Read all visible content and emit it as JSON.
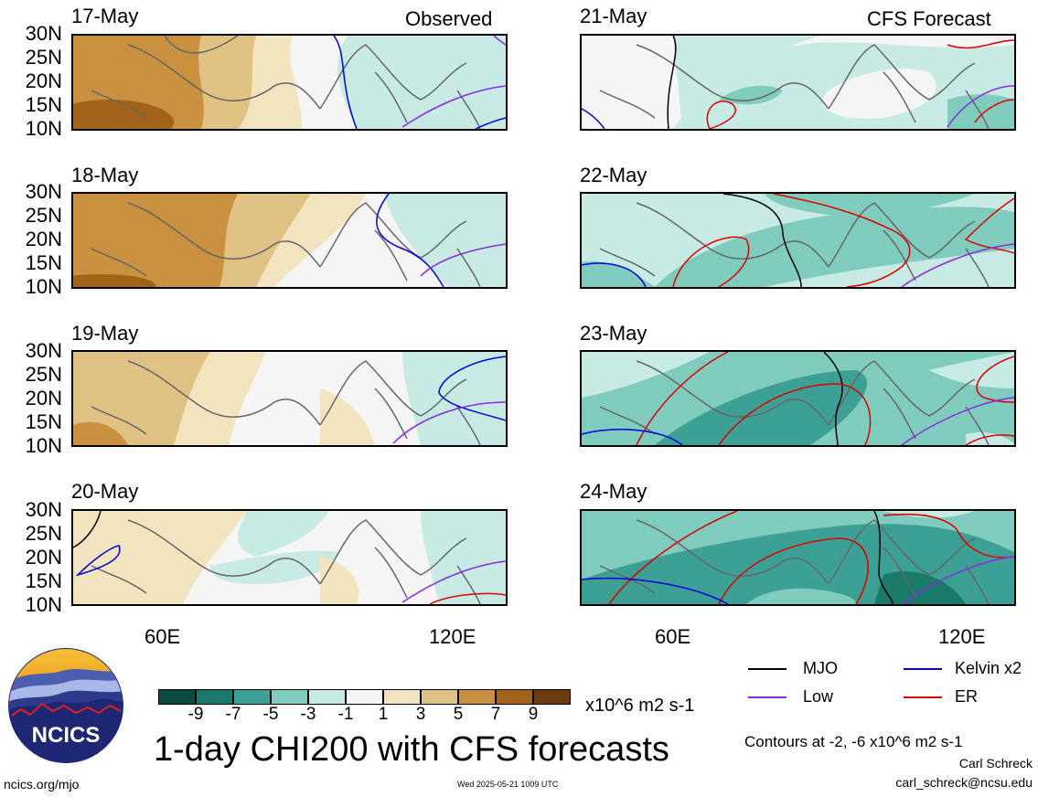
{
  "observed_label": "Observed",
  "forecast_label": "CFS Forecast",
  "lat_labels": [
    "30N",
    "25N",
    "20N",
    "15N",
    "10N"
  ],
  "lon_labels": [
    "60E",
    "120E"
  ],
  "panels_left": [
    {
      "date": "17-May"
    },
    {
      "date": "18-May"
    },
    {
      "date": "19-May"
    },
    {
      "date": "20-May"
    }
  ],
  "panels_right": [
    {
      "date": "21-May"
    },
    {
      "date": "22-May"
    },
    {
      "date": "23-May"
    },
    {
      "date": "24-May"
    }
  ],
  "colorbar": {
    "colors": [
      "#0b4a3f",
      "#1a7a6a",
      "#3ca094",
      "#7fcbbe",
      "#c7ebe4",
      "#f5f5f5",
      "#f3e4c0",
      "#e0c184",
      "#c8903f",
      "#a26319",
      "#6b3d0e"
    ],
    "ticks": [
      "-9",
      "-7",
      "-5",
      "-3",
      "-1",
      "1",
      "3",
      "5",
      "7",
      "9"
    ],
    "units": "x10^6 m2 s-1"
  },
  "title": "1-day CHI200 with CFS forecasts",
  "logo_text": "NCICS",
  "legend": {
    "mjo": "MJO",
    "kelvin": "Kelvin x2",
    "low": "Low",
    "er": "ER",
    "colors": {
      "mjo": "#000000",
      "kelvin": "#0000dd",
      "low": "#8a2be2",
      "er": "#dd0000"
    }
  },
  "contours_note": "Contours at -2, -6 x10^6 m2 s-1",
  "author": "Carl Schreck",
  "email": "carl_schreck@ncsu.edu",
  "url": "ncics.org/mjo",
  "timestamp": "Wed 2025-05-21 1009 UTC"
}
